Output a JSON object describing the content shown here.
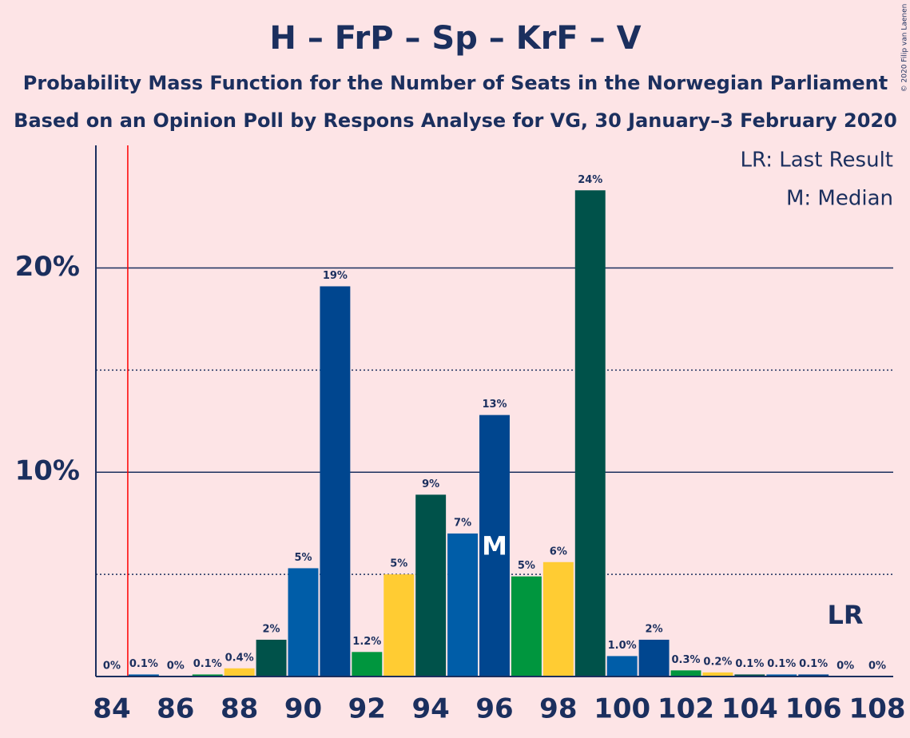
{
  "chart_data": {
    "type": "bar",
    "title": "H – FrP – Sp – KrF – V",
    "subtitle": "Probability Mass Function for the Number of Seats in the Norwegian Parliament",
    "subtitle2": "Based on an Opinion Poll by Respons Analyse for VG, 30 January–3 February 2020",
    "copyright": "© 2020 Filip van Laenen",
    "legend_lr": "LR: Last Result",
    "legend_median": "M: Median",
    "lr_label": "LR",
    "median_label": "M",
    "x": [
      84,
      85,
      86,
      87,
      88,
      89,
      90,
      91,
      92,
      93,
      94,
      95,
      96,
      97,
      98,
      99,
      100,
      101,
      102,
      103,
      104,
      105,
      106,
      107,
      108
    ],
    "values": [
      0,
      0.1,
      0,
      0.1,
      0.4,
      1.8,
      5.3,
      19.1,
      1.2,
      5.0,
      8.9,
      7.0,
      12.8,
      4.9,
      5.6,
      23.8,
      1.0,
      1.8,
      0.3,
      0.2,
      0.1,
      0.1,
      0.1,
      0,
      0
    ],
    "value_labels": [
      "0%",
      "0.1%",
      "0%",
      "0.1%",
      "0.4%",
      "2%",
      "5%",
      "19%",
      "1.2%",
      "5%",
      "9%",
      "7%",
      "13%",
      "5%",
      "6%",
      "24%",
      "1.0%",
      "2%",
      "0.3%",
      "0.2%",
      "0.1%",
      "0.1%",
      "0.1%",
      "0%",
      "0%"
    ],
    "colors": [
      "#00524a",
      "#005da8",
      "#00468f",
      "#00963e",
      "#ffcc33",
      "#00524a",
      "#005da8",
      "#00468f",
      "#00963e",
      "#ffcc33",
      "#00524a",
      "#005da8",
      "#00468f",
      "#00963e",
      "#ffcc33",
      "#00524a",
      "#005da8",
      "#00468f",
      "#00963e",
      "#ffcc33",
      "#00524a",
      "#005da8",
      "#00468f",
      "#00963e",
      "#ffcc33"
    ],
    "xlim": [
      83.5,
      108.5
    ],
    "xticks": [
      84,
      86,
      88,
      90,
      92,
      94,
      96,
      98,
      100,
      102,
      104,
      106,
      108
    ],
    "ylim": [
      0,
      26
    ],
    "yticks": [
      {
        "value": 10,
        "label": "10%"
      },
      {
        "value": 20,
        "label": "20%"
      }
    ],
    "minor_yticks": [
      5,
      15
    ],
    "last_result": 84.5,
    "median": 96,
    "grid": true
  }
}
